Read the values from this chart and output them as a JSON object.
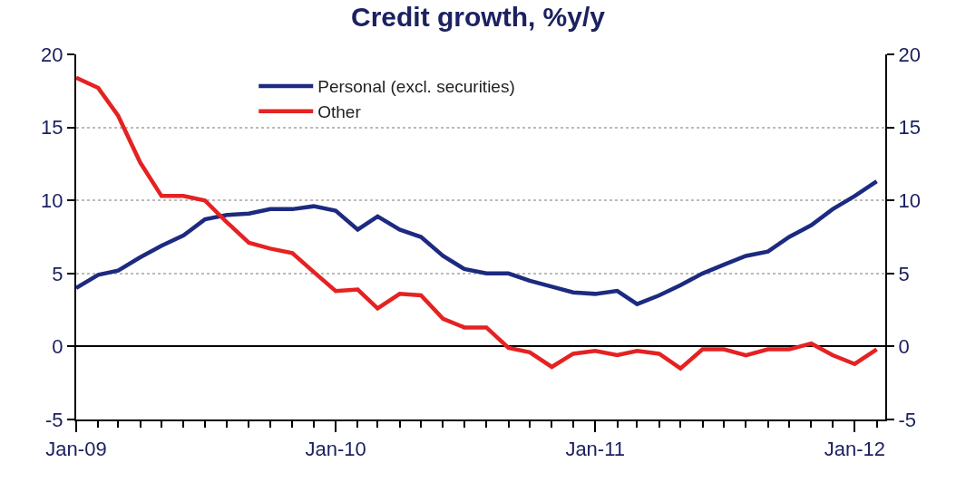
{
  "chart_data": {
    "type": "line",
    "title": "Credit growth, %y/y",
    "x": [
      "2009-01",
      "2009-02",
      "2009-03",
      "2009-04",
      "2009-05",
      "2009-06",
      "2009-07",
      "2009-08",
      "2009-09",
      "2009-10",
      "2009-11",
      "2009-12",
      "2010-01",
      "2010-02",
      "2010-03",
      "2010-04",
      "2010-05",
      "2010-06",
      "2010-07",
      "2010-08",
      "2010-09",
      "2010-10",
      "2010-11",
      "2010-12",
      "2011-01",
      "2011-02",
      "2011-03",
      "2011-04",
      "2011-05",
      "2011-06",
      "2011-07",
      "2011-08",
      "2011-09",
      "2011-10",
      "2011-11",
      "2011-12",
      "2012-01",
      "2012-02"
    ],
    "series": [
      {
        "name": "Personal (excl. securities)",
        "color": "#1c2a80",
        "values": [
          4.0,
          4.9,
          5.2,
          6.1,
          6.9,
          7.6,
          8.7,
          9.0,
          9.1,
          9.4,
          9.4,
          9.6,
          9.3,
          8.0,
          8.9,
          8.0,
          7.5,
          6.2,
          5.3,
          5.0,
          5.0,
          4.5,
          4.1,
          3.7,
          3.6,
          3.8,
          2.9,
          3.5,
          4.2,
          5.0,
          5.6,
          6.2,
          6.5,
          7.5,
          8.3,
          9.4,
          10.3,
          11.3
        ]
      },
      {
        "name": "Other",
        "color": "#e52222",
        "values": [
          18.4,
          17.7,
          15.8,
          12.6,
          10.3,
          10.3,
          10.0,
          8.5,
          7.1,
          6.7,
          6.4,
          5.1,
          3.8,
          3.9,
          2.6,
          3.6,
          3.5,
          1.9,
          1.3,
          1.3,
          -0.1,
          -0.4,
          -1.4,
          -0.5,
          -0.3,
          -0.6,
          -0.3,
          -0.5,
          -1.5,
          -0.2,
          -0.2,
          -0.6,
          -0.2,
          -0.2,
          0.2,
          -0.6,
          -1.2,
          -0.2
        ]
      }
    ],
    "xlim": [
      "2009-01-01",
      "2012-02-13"
    ],
    "xticks": [
      {
        "value": "2009-01-01",
        "label": "Jan-09"
      },
      {
        "value": "2010-01-01",
        "label": "Jan-10"
      },
      {
        "value": "2011-01-01",
        "label": "Jan-11"
      },
      {
        "value": "2012-01-01",
        "label": "Jan-12"
      }
    ],
    "ylim": [
      -5,
      20
    ],
    "yticks": [
      -5,
      0,
      5,
      10,
      15,
      20
    ],
    "y2lim": [
      -5,
      20
    ],
    "y2ticks": [
      -5,
      0,
      5,
      10,
      15,
      20
    ],
    "grid": "y",
    "legend": "top",
    "marker": "none",
    "line_style": "solid"
  }
}
